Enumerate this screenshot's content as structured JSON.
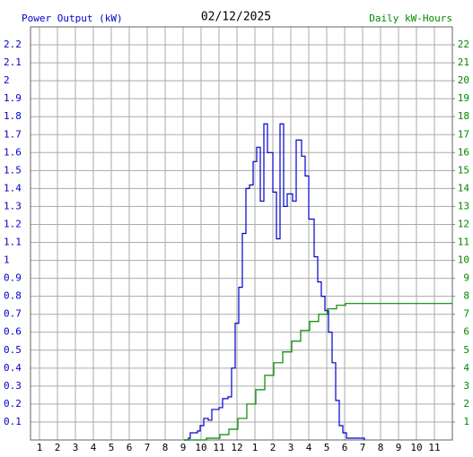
{
  "chart_data": {
    "type": "line",
    "title": "02/12/2025",
    "y_label": "Power Output (kW)",
    "y2_label": "Daily kW-Hours",
    "xlim": [
      0.5,
      24
    ],
    "xticks": [
      1,
      2,
      3,
      4,
      5,
      6,
      7,
      8,
      9,
      10,
      11,
      12,
      {
        "value": 13,
        "label": "1"
      },
      {
        "value": 14,
        "label": "2"
      },
      {
        "value": 15,
        "label": "3"
      },
      {
        "value": 16,
        "label": "4"
      },
      {
        "value": 17,
        "label": "5"
      },
      {
        "value": 18,
        "label": "6"
      },
      {
        "value": 19,
        "label": "7"
      },
      {
        "value": 20,
        "label": "8"
      },
      {
        "value": 21,
        "label": "9"
      },
      {
        "value": 22,
        "label": "10"
      },
      {
        "value": 23,
        "label": "11"
      }
    ],
    "ylim": [
      0,
      2.3
    ],
    "yticks": [
      0.1,
      0.2,
      0.3,
      0.4,
      0.5,
      0.6,
      0.7,
      0.8,
      0.9,
      1.0,
      1.1,
      1.2,
      1.3,
      1.4,
      1.5,
      1.6,
      1.7,
      1.8,
      1.9,
      2.0,
      2.1,
      2.2
    ],
    "y2lim": [
      0,
      23
    ],
    "y2ticks": [
      1,
      2,
      3,
      4,
      5,
      6,
      7,
      8,
      9,
      10,
      11,
      12,
      13,
      14,
      15,
      16,
      17,
      18,
      19,
      20,
      21,
      22
    ],
    "grid": true,
    "step": true,
    "y_color": "#0000cc",
    "y2_color": "#008800",
    "series": [
      {
        "name": "Power Output (kW)",
        "color": "#0000cc",
        "x": [
          9.05,
          9.3,
          9.4,
          9.8,
          9.95,
          10.15,
          10.4,
          10.6,
          11.0,
          11.2,
          11.5,
          11.7,
          11.9,
          12.1,
          12.3,
          12.5,
          12.7,
          12.9,
          13.1,
          13.3,
          13.5,
          13.7,
          14.0,
          14.2,
          14.4,
          14.6,
          14.8,
          15.1,
          15.3,
          15.6,
          15.8,
          16.0,
          16.3,
          16.5,
          16.7,
          16.9,
          17.1,
          17.3,
          17.5,
          17.7,
          17.9,
          18.1,
          19.1
        ],
        "values": [
          0,
          0.01,
          0.04,
          0.05,
          0.08,
          0.12,
          0.11,
          0.17,
          0.18,
          0.23,
          0.24,
          0.4,
          0.65,
          0.85,
          1.15,
          1.4,
          1.42,
          1.55,
          1.63,
          1.33,
          1.76,
          1.6,
          1.38,
          1.12,
          1.76,
          1.3,
          1.37,
          1.33,
          1.67,
          1.58,
          1.47,
          1.23,
          1.02,
          0.88,
          0.8,
          0.72,
          0.6,
          0.43,
          0.22,
          0.08,
          0.04,
          0.01,
          0
        ]
      },
      {
        "name": "Daily kW-Hours",
        "color": "#008800",
        "axis": "y2",
        "x": [
          9.05,
          10.3,
          11.05,
          11.55,
          12.05,
          12.55,
          13.05,
          13.55,
          14.05,
          14.55,
          15.05,
          15.55,
          16.05,
          16.55,
          17.05,
          17.55,
          18.05,
          24.0
        ],
        "values": [
          0,
          0.1,
          0.3,
          0.6,
          1.2,
          2.0,
          2.8,
          3.6,
          4.3,
          4.9,
          5.5,
          6.1,
          6.6,
          7.0,
          7.3,
          7.5,
          7.6,
          7.6
        ]
      }
    ]
  }
}
